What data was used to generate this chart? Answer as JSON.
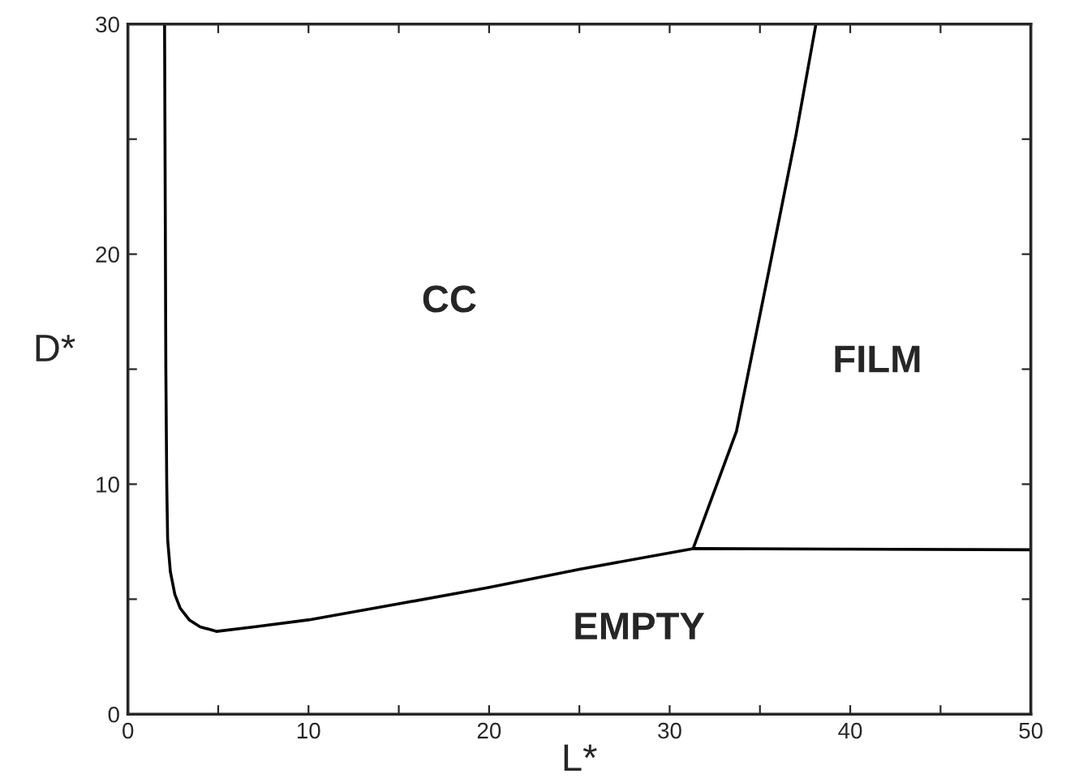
{
  "chart_data": {
    "type": "line",
    "xlabel": "L*",
    "ylabel": "D*",
    "xlim": [
      0,
      50
    ],
    "ylim": [
      0,
      30
    ],
    "xticks": [
      0,
      {
        "value": 5,
        "label": null
      },
      10,
      {
        "value": 15,
        "label": null
      },
      20,
      {
        "value": 25,
        "label": null
      },
      30,
      {
        "value": 35,
        "label": null
      },
      40,
      {
        "value": 45,
        "label": null
      },
      50
    ],
    "yticks": [
      0,
      {
        "value": 5,
        "label": null
      },
      10,
      {
        "value": 15,
        "label": null
      },
      20,
      {
        "value": 25,
        "label": null
      },
      30
    ],
    "grid": false,
    "legend": false,
    "marker": "none",
    "line_style": "solid",
    "series": [
      {
        "color": "#000000",
        "x": [
          2.03,
          2.1,
          2.15,
          2.2,
          2.35,
          2.6,
          2.9,
          3.4,
          4.0,
          4.9,
          7,
          10,
          15,
          19.9,
          25,
          31.3,
          50
        ],
        "values": [
          30,
          15,
          10,
          7.6,
          6.2,
          5.2,
          4.6,
          4.1,
          3.8,
          3.6,
          3.8,
          4.1,
          4.8,
          5.5,
          6.3,
          7.2,
          7.15
        ]
      },
      {
        "color": "#000000",
        "x": [
          31.3,
          33.7,
          35.5,
          37.0,
          38.1
        ],
        "values": [
          7.2,
          12.3,
          19.3,
          25.2,
          30
        ]
      }
    ],
    "annotations": [
      "CC",
      "FILM",
      "EMPTY"
    ]
  }
}
